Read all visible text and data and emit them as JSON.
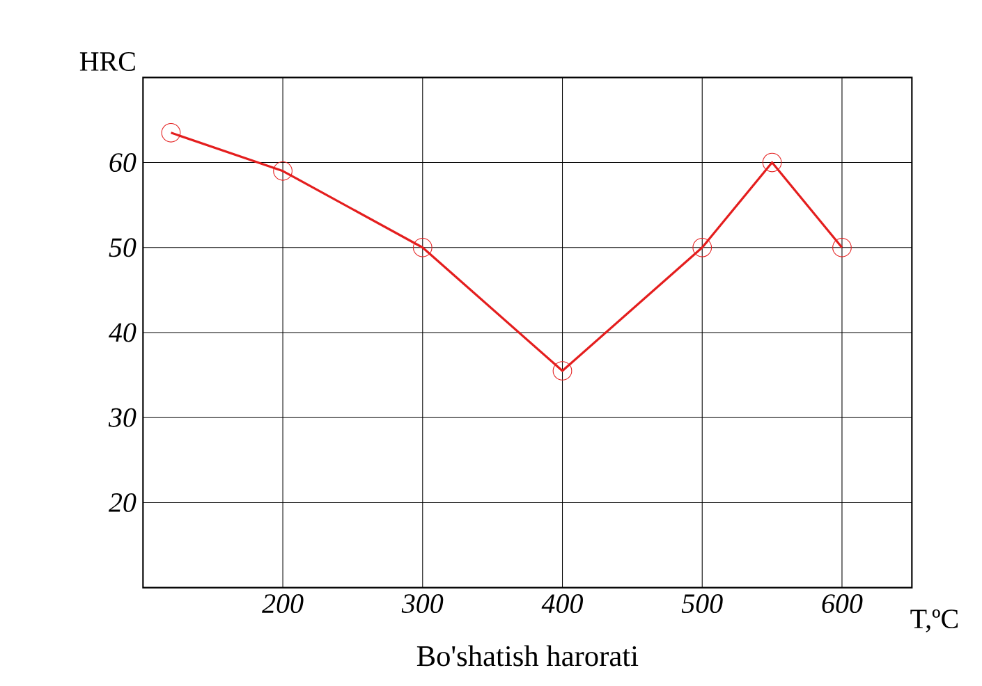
{
  "chart_data": {
    "type": "line",
    "xlabel": "T,ºC",
    "ylabel": "HRC",
    "annotations": [
      "Bo'shatish harorati"
    ],
    "x": [
      120,
      200,
      300,
      400,
      500,
      550,
      600
    ],
    "series": [
      {
        "color": "#e41e1e",
        "values": [
          63.5,
          59,
          50,
          35.5,
          50,
          60,
          50
        ]
      }
    ],
    "xlim": [
      100,
      650
    ],
    "ylim": [
      10,
      70
    ],
    "xticks": [
      200,
      300,
      400,
      500,
      600
    ],
    "yticks": [
      20,
      30,
      40,
      50,
      60
    ],
    "grid": true,
    "marker": "circle",
    "line_style": "solid"
  }
}
